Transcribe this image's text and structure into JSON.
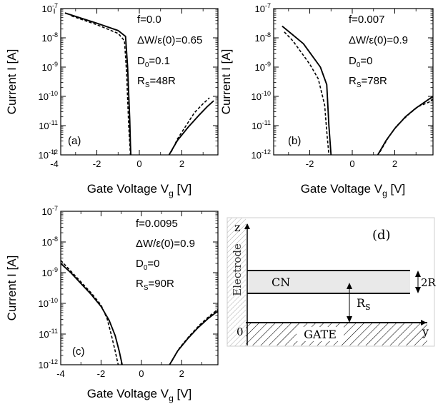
{
  "chart_data": [
    {
      "type": "line",
      "panel_label": "(a)",
      "xlabel": "Gate Voltage V",
      "xlabel_sub": "g",
      "xlabel_unit": "[V]",
      "ylabel": "Current I [A]",
      "xlim": [
        -3.7,
        3.7
      ],
      "ylim_log10": [
        -12,
        -7
      ],
      "yscale": "log",
      "xticks": [
        -4,
        -2,
        0,
        2
      ],
      "yticks": [
        -12,
        -11,
        -10,
        -9,
        -8,
        -7
      ],
      "annotations": [
        {
          "text": "f=0.0"
        },
        {
          "text": "ΔW/ε(0)=0.65"
        },
        {
          "base": "D",
          "sub": "0",
          "rest": "=0.1"
        },
        {
          "base": "R",
          "sub": "S",
          "rest": "=48R"
        }
      ],
      "series": [
        {
          "style": "solid",
          "x": [
            -3.5,
            -2.0,
            -1.0,
            -0.65,
            -0.55,
            -0.45,
            -0.42,
            -0.4
          ],
          "log10_y": [
            -7.15,
            -7.5,
            -7.75,
            -7.95,
            -9.0,
            -10.8,
            -11.6,
            -12.0
          ]
        },
        {
          "style": "dashed",
          "x": [
            -3.2,
            -2.0,
            -1.0,
            -0.7,
            -0.6,
            -0.5,
            -0.45,
            -0.42
          ],
          "log10_y": [
            -7.25,
            -7.55,
            -7.85,
            -8.1,
            -9.2,
            -11.0,
            -11.6,
            -12.0
          ]
        },
        {
          "style": "solid",
          "x": [
            1.4,
            1.8,
            2.3,
            2.8,
            3.2,
            3.5
          ],
          "log10_y": [
            -12.0,
            -11.5,
            -11.05,
            -10.65,
            -10.35,
            -10.15
          ]
        },
        {
          "style": "dashed",
          "x": [
            1.5,
            1.8,
            2.2,
            2.6,
            3.0,
            3.3
          ],
          "log10_y": [
            -11.9,
            -11.45,
            -11.0,
            -10.55,
            -10.25,
            -10.05
          ]
        }
      ]
    },
    {
      "type": "line",
      "panel_label": "(b)",
      "xlabel": "Gate Voltage V",
      "xlabel_sub": "g",
      "xlabel_unit": "[V]",
      "ylabel": "Current I [A]",
      "xlim": [
        -3.7,
        3.8
      ],
      "ylim_log10": [
        -12,
        -7
      ],
      "yscale": "log",
      "xticks": [
        -2,
        0,
        2
      ],
      "yticks": [
        -12,
        -11,
        -10,
        -9,
        -8,
        -7
      ],
      "annotations": [
        {
          "text": "f=0.007"
        },
        {
          "text": "ΔW/ε(0)=0.9"
        },
        {
          "base": "D",
          "sub": "0",
          "rest": "=0"
        },
        {
          "base": "R",
          "sub": "S",
          "rest": "=78R"
        }
      ],
      "series": [
        {
          "style": "solid",
          "x": [
            -3.3,
            -2.8,
            -2.3,
            -1.9,
            -1.5,
            -1.2,
            -1.1,
            -1.0
          ],
          "log10_y": [
            -7.6,
            -7.9,
            -8.2,
            -8.6,
            -9.0,
            -9.6,
            -11.0,
            -12.0
          ]
        },
        {
          "style": "dashed",
          "x": [
            -3.2,
            -2.8,
            -2.4,
            -2.0,
            -1.6,
            -1.3,
            -1.2,
            -1.1
          ],
          "log10_y": [
            -7.8,
            -8.1,
            -8.5,
            -8.9,
            -9.4,
            -10.3,
            -11.2,
            -12.0
          ]
        },
        {
          "style": "solid",
          "x": [
            1.2,
            1.6,
            2.0,
            2.5,
            3.0,
            3.5,
            3.8
          ],
          "log10_y": [
            -12.0,
            -11.5,
            -11.1,
            -10.7,
            -10.4,
            -10.15,
            -10.0
          ]
        },
        {
          "style": "dashed",
          "x": [
            1.3,
            1.7,
            2.1,
            2.6,
            3.1,
            3.6,
            3.8
          ],
          "log10_y": [
            -11.9,
            -11.4,
            -11.0,
            -10.65,
            -10.35,
            -10.2,
            -10.1
          ]
        }
      ]
    },
    {
      "type": "line",
      "panel_label": "(c)",
      "xlabel": "Gate Voltage V",
      "xlabel_sub": "g",
      "xlabel_unit": "[V]",
      "ylabel": "Current I [A]",
      "xlim": [
        -4.0,
        3.8
      ],
      "ylim_log10": [
        -12,
        -7
      ],
      "yscale": "log",
      "xticks": [
        -4,
        -2,
        0,
        2
      ],
      "yticks": [
        -12,
        -11,
        -10,
        -9,
        -8,
        -7
      ],
      "annotations": [
        {
          "text": "f=0.0095"
        },
        {
          "text": "ΔW/ε(0)=0.9"
        },
        {
          "base": "D",
          "sub": "0",
          "rest": "=0"
        },
        {
          "base": "R",
          "sub": "S",
          "rest": "=90R"
        }
      ],
      "series": [
        {
          "style": "solid",
          "x": [
            -4.0,
            -3.5,
            -3.0,
            -2.5,
            -2.0,
            -1.6,
            -1.3,
            -1.1,
            -0.95
          ],
          "log10_y": [
            -8.7,
            -9.0,
            -9.35,
            -9.7,
            -10.1,
            -10.55,
            -11.05,
            -11.55,
            -12.0
          ]
        },
        {
          "style": "dashed",
          "x": [
            -4.0,
            -3.5,
            -3.0,
            -2.5,
            -2.0,
            -1.7,
            -1.5,
            -1.3,
            -1.15
          ],
          "log10_y": [
            -8.6,
            -8.95,
            -9.3,
            -9.65,
            -10.05,
            -10.5,
            -11.0,
            -11.55,
            -12.0
          ]
        },
        {
          "style": "solid",
          "x": [
            1.4,
            1.8,
            2.3,
            2.8,
            3.3,
            3.8
          ],
          "log10_y": [
            -12.0,
            -11.55,
            -11.15,
            -10.8,
            -10.5,
            -10.25
          ]
        },
        {
          "style": "dashed",
          "x": [
            1.5,
            1.9,
            2.4,
            2.9,
            3.4,
            3.8
          ],
          "log10_y": [
            -11.9,
            -11.45,
            -11.05,
            -10.7,
            -10.4,
            -10.2
          ]
        }
      ]
    }
  ],
  "diagram": {
    "panel_label": "(d)",
    "z_label": "z",
    "y_label": "y",
    "origin_label": "0",
    "electrode_label": "Electrode",
    "cn_label": "CN",
    "gate_label": "GATE",
    "radius_label": "2R",
    "rs_base": "R",
    "rs_sub": "S"
  }
}
